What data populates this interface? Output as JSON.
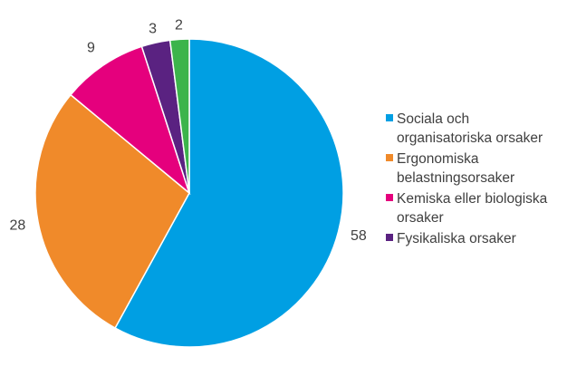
{
  "chart_data": {
    "type": "pie",
    "title": "",
    "categories": [
      "Sociala och organisatoriska orsaker",
      "Ergonomiska belastningsorsaker",
      "Kemiska eller biologiska orsaker",
      "Fysikaliska orsaker",
      ""
    ],
    "values": [
      58,
      28,
      9,
      3,
      2
    ],
    "data_labels": [
      "58",
      "28",
      "9",
      "3",
      "2"
    ],
    "colors": [
      "#009FE3",
      "#F08A2A",
      "#E5007D",
      "#5A2281",
      "#3CB44B"
    ],
    "legend": {
      "placement": "right",
      "entries": [
        "Sociala och organisatoriska orsaker",
        "Ergonomiska belastningsorsaker",
        "Kemiska eller biologiska orsaker",
        "Fysikaliska orsaker"
      ]
    }
  }
}
